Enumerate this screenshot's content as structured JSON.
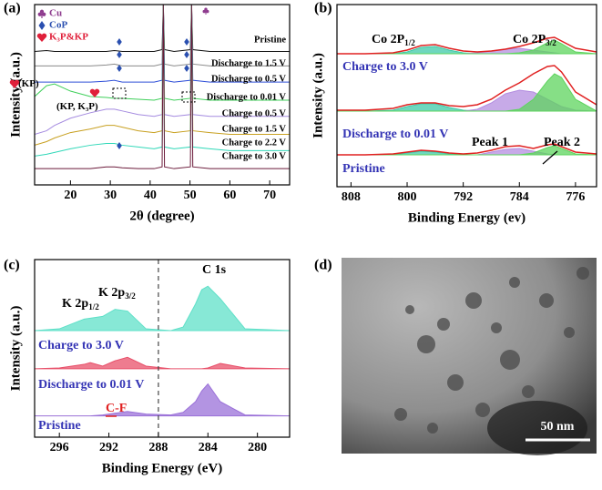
{
  "chart_data": [
    {
      "type": "line",
      "label": "(a)",
      "xlabel": "2θ (degree)",
      "ylabel": "Intensity (a.u.)",
      "xlim": [
        11,
        75
      ],
      "xticks": [
        20,
        30,
        40,
        50,
        60,
        70
      ],
      "ylim": [
        0,
        100
      ],
      "legend": [
        {
          "symbol": "club",
          "text": "Cu",
          "color": "#8e3b8e"
        },
        {
          "symbol": "diamond",
          "text": "CoP",
          "color": "#2a4fb0"
        },
        {
          "symbol": "heart",
          "text": "K₃P&KP",
          "color": "#e0203a"
        }
      ],
      "annotations": [
        {
          "text": "(KP)",
          "color": "#000000"
        },
        {
          "text": "(KP, K₃P)",
          "color": "#000000"
        }
      ],
      "x": [
        11,
        14,
        16,
        20,
        25,
        29,
        31,
        33,
        37,
        41,
        43.0,
        43.3,
        43.6,
        46,
        50.1,
        50.4,
        50.7,
        55,
        60,
        65,
        70,
        75
      ],
      "series": [
        {
          "name": "Pristine",
          "color": "#111111",
          "values": [
            74,
            74.5,
            74,
            74,
            74,
            74,
            74.5,
            74,
            74,
            74,
            75,
            100,
            75,
            74,
            75,
            100,
            75,
            74,
            74,
            74,
            74,
            74
          ]
        },
        {
          "name": "Discharge to 1.5 V",
          "color": "#8a8a8a",
          "values": [
            66,
            66,
            66,
            66,
            66,
            66.5,
            67,
            66,
            66,
            66,
            67,
            100,
            67,
            66,
            67,
            100,
            67,
            66,
            66,
            66,
            66,
            66
          ]
        },
        {
          "name": "Discharge to 0.5 V",
          "color": "#2f4fd8",
          "values": [
            57,
            57,
            57,
            57,
            57,
            57.5,
            58,
            57,
            57,
            57,
            58,
            100,
            58,
            57,
            58,
            100,
            58,
            57,
            57,
            57,
            57,
            57
          ]
        },
        {
          "name": "Discharge to 0.01 V",
          "color": "#3fcf5a",
          "values": [
            49,
            55,
            56,
            52,
            49,
            48.5,
            48,
            48,
            47.5,
            47,
            48,
            100,
            48,
            47,
            48,
            100,
            48,
            47,
            47,
            47,
            47,
            47
          ]
        },
        {
          "name": "Charge to 0.5 V",
          "color": "#a58be0",
          "values": [
            28,
            30,
            33,
            37,
            40,
            42,
            42,
            41,
            39,
            38,
            39,
            100,
            39,
            38,
            39,
            100,
            39,
            38,
            38,
            38,
            38,
            38
          ]
        },
        {
          "name": "Charge to 1.5 V",
          "color": "#c8a020",
          "values": [
            22,
            24,
            26,
            29,
            31,
            33,
            33,
            32,
            30,
            29,
            30,
            100,
            30,
            29,
            30,
            100,
            30,
            29,
            28,
            28,
            28,
            28
          ]
        },
        {
          "name": "Charge to 2.2 V",
          "color": "#30d8b8",
          "values": [
            16,
            17,
            18,
            20,
            22,
            23,
            23,
            22,
            21,
            20,
            21,
            100,
            21,
            20,
            21,
            100,
            21,
            20,
            19,
            19,
            19,
            19
          ]
        },
        {
          "name": "Charge to 3.0 V",
          "color": "#6b1a3a",
          "values": [
            9,
            9,
            9,
            9,
            9,
            10,
            10,
            9.5,
            9,
            9,
            10,
            100,
            10,
            9,
            10,
            100,
            10,
            9,
            9,
            9,
            9,
            9
          ]
        }
      ]
    },
    {
      "type": "line",
      "label": "(b)",
      "xlabel": "Binding Energy (ev)",
      "ylabel": "Intensity (a.u.)",
      "xlim": [
        810,
        773
      ],
      "xticks": [
        808,
        800,
        792,
        784,
        776
      ],
      "ylim": [
        0,
        100
      ],
      "annotations": [
        {
          "text": "Co 2P",
          "sub": "1/2",
          "color": "#000000"
        },
        {
          "text": "Co 2P",
          "sub": "3/2",
          "color": "#000000"
        },
        {
          "text": "Charge to 3.0 V",
          "color": "#3535b5"
        },
        {
          "text": "Discharge to 0.01 V",
          "color": "#3535b5"
        },
        {
          "text": "Pristine",
          "color": "#3535b5"
        },
        {
          "text": "Peak 1",
          "color": "#000000"
        },
        {
          "text": "Peak 2",
          "color": "#000000"
        }
      ],
      "x": [
        810,
        806,
        802,
        800,
        798,
        796,
        794,
        792,
        790,
        788,
        786,
        784,
        782,
        780,
        779,
        778,
        776,
        773
      ],
      "series": [
        {
          "color": "#3fc9a8",
          "fill": true,
          "values": [
            73,
            73,
            73,
            74,
            76.5,
            77,
            75,
            73.5,
            73,
            73,
            73,
            73,
            73,
            73,
            73,
            73,
            73,
            73
          ]
        },
        {
          "color": "#b48ee0",
          "fill": true,
          "values": [
            73,
            73,
            73,
            73,
            73,
            73,
            73,
            73,
            73.5,
            74.5,
            75.5,
            76,
            75,
            74,
            73.5,
            73,
            73,
            73
          ]
        },
        {
          "color": "#5ed45e",
          "fill": true,
          "values": [
            73,
            73,
            73,
            73,
            73,
            73,
            73,
            73,
            73,
            73,
            73,
            73.5,
            75,
            79,
            80.5,
            78.5,
            74,
            73
          ]
        },
        {
          "color": "#e02020",
          "values": [
            73,
            73,
            73.5,
            75,
            77.5,
            78,
            76,
            74.5,
            74,
            74.5,
            75.5,
            77,
            79,
            81.5,
            82,
            80,
            76,
            74
          ]
        },
        {
          "color": "#3fc9a8",
          "fill": true,
          "values": [
            41.5,
            41.5,
            42,
            44,
            45.5,
            45.5,
            43.5,
            42,
            41.5,
            41.5,
            41.5,
            41.5,
            41.5,
            41.5,
            41.5,
            41.5,
            41.5,
            41.5
          ]
        },
        {
          "color": "#b48ee0",
          "fill": true,
          "values": [
            41.5,
            41.5,
            41.5,
            41.5,
            41.5,
            41.5,
            41.5,
            41.5,
            42.5,
            46,
            51,
            53,
            52,
            48,
            46,
            44,
            42,
            41.5
          ]
        },
        {
          "color": "#5ed45e",
          "fill": true,
          "values": [
            41.5,
            41.5,
            41.5,
            41.5,
            41.5,
            41.5,
            41.5,
            41.5,
            41.5,
            41.5,
            41.5,
            42.5,
            48,
            58,
            62,
            60,
            48,
            41.5
          ]
        },
        {
          "color": "#e02020",
          "values": [
            42,
            42,
            43,
            45,
            46,
            46,
            44.5,
            44,
            45,
            48,
            53,
            57,
            62,
            66,
            66.5,
            63,
            52,
            45
          ]
        },
        {
          "color": "#3fc9a8",
          "fill": true,
          "values": [
            17.5,
            17.5,
            17.5,
            18.5,
            19.5,
            19,
            18,
            17.5,
            17.5,
            17.5,
            17.5,
            17.5,
            17.5,
            17.5,
            17.5,
            17.5,
            17.5,
            17.5
          ]
        },
        {
          "color": "#b48ee0",
          "fill": true,
          "values": [
            17.5,
            17.5,
            17.5,
            17.5,
            17.5,
            17.5,
            17.5,
            17.5,
            17.5,
            19,
            20.5,
            21,
            19.5,
            18,
            17.5,
            17.5,
            17.5,
            17.5
          ]
        },
        {
          "color": "#5ed45e",
          "fill": true,
          "values": [
            17.5,
            17.5,
            17.5,
            17.5,
            17.5,
            17.5,
            17.5,
            17.5,
            17.5,
            17.5,
            17.5,
            17.5,
            18.5,
            21.5,
            22.5,
            21,
            18,
            17.5
          ]
        },
        {
          "color": "#e02020",
          "values": [
            17.5,
            17.5,
            18,
            19,
            20,
            19.5,
            18.5,
            18,
            18.5,
            20,
            22,
            22.5,
            21,
            23,
            23.5,
            22,
            19,
            18
          ]
        }
      ]
    },
    {
      "type": "line",
      "label": "(c)",
      "xlabel": "Binding Energy (eV)",
      "ylabel": "Intensity (a.u.)",
      "xlim": [
        298,
        277.4
      ],
      "xticks": [
        296,
        292,
        288,
        284,
        280
      ],
      "ylim": [
        0,
        100
      ],
      "vline": 288,
      "annotations": [
        {
          "text": "K 2p",
          "sub": "1/2",
          "color": "#000000"
        },
        {
          "text": "K 2p",
          "sub": "3/2",
          "color": "#000000"
        },
        {
          "text": "C 1s",
          "color": "#000000"
        },
        {
          "text": "Charge to 3.0 V",
          "color": "#3535b5"
        },
        {
          "text": "Discharge to 0.01 V",
          "color": "#3535b5"
        },
        {
          "text": "C-F",
          "color": "#e02020"
        },
        {
          "text": "Pristine",
          "color": "#3535b5"
        }
      ],
      "x": [
        298,
        296,
        294,
        293.5,
        292.5,
        291.5,
        290.5,
        289,
        287,
        286,
        285,
        284.5,
        284,
        283,
        281,
        277.4
      ],
      "series": [
        {
          "color": "#5fe0c8",
          "fill": true,
          "values": [
            60,
            61,
            66.5,
            67,
            68,
            72,
            71,
            61,
            60,
            62,
            75,
            83,
            85,
            78,
            61,
            60
          ]
        },
        {
          "color": "#e8506a",
          "fill": true,
          "values": [
            38.5,
            39,
            41,
            42,
            40,
            43,
            45,
            40,
            38.5,
            38.5,
            38.5,
            38.5,
            39,
            41.5,
            39,
            38.5
          ]
        },
        {
          "color": "#9a70d8",
          "fill": true,
          "values": [
            12,
            12,
            12,
            12,
            12.5,
            13.5,
            14.5,
            13,
            12.5,
            14,
            20,
            26,
            30,
            20,
            12.5,
            12
          ]
        }
      ]
    }
  ],
  "image": {
    "label": "(d)",
    "scale_bar": "50 nm"
  }
}
